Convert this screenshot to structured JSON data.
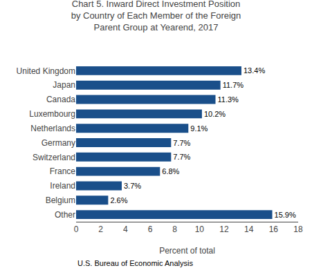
{
  "chart_data": {
    "type": "bar",
    "orientation": "horizontal",
    "title": "Chart 5. Inward Direct Investment Position\nby Country of Each Member of the Foreign\nParent Group at Yearend, 2017",
    "categories": [
      "United Kingdom",
      "Japan",
      "Canada",
      "Luxembourg",
      "Netherlands",
      "Germany",
      "Switzerland",
      "France",
      "Ireland",
      "Belgium",
      "Other"
    ],
    "values": [
      13.4,
      11.7,
      11.3,
      10.2,
      9.1,
      7.7,
      7.7,
      6.8,
      3.7,
      2.6,
      15.9
    ],
    "value_labels": [
      "13.4%",
      "11.7%",
      "11.3%",
      "10.2%",
      "9.1%",
      "7.7%",
      "7.7%",
      "6.8%",
      "3.7%",
      "2.6%",
      "15.9%"
    ],
    "data_labels": true,
    "color": "#1a4f8a",
    "xlabel": "Percent of total",
    "xlim": [
      0,
      18
    ],
    "xticks": [
      0,
      2,
      4,
      6,
      8,
      10,
      12,
      14,
      16,
      18
    ],
    "grid": false,
    "annotations": [
      "U.S. Bureau of Economic Analysis"
    ]
  }
}
